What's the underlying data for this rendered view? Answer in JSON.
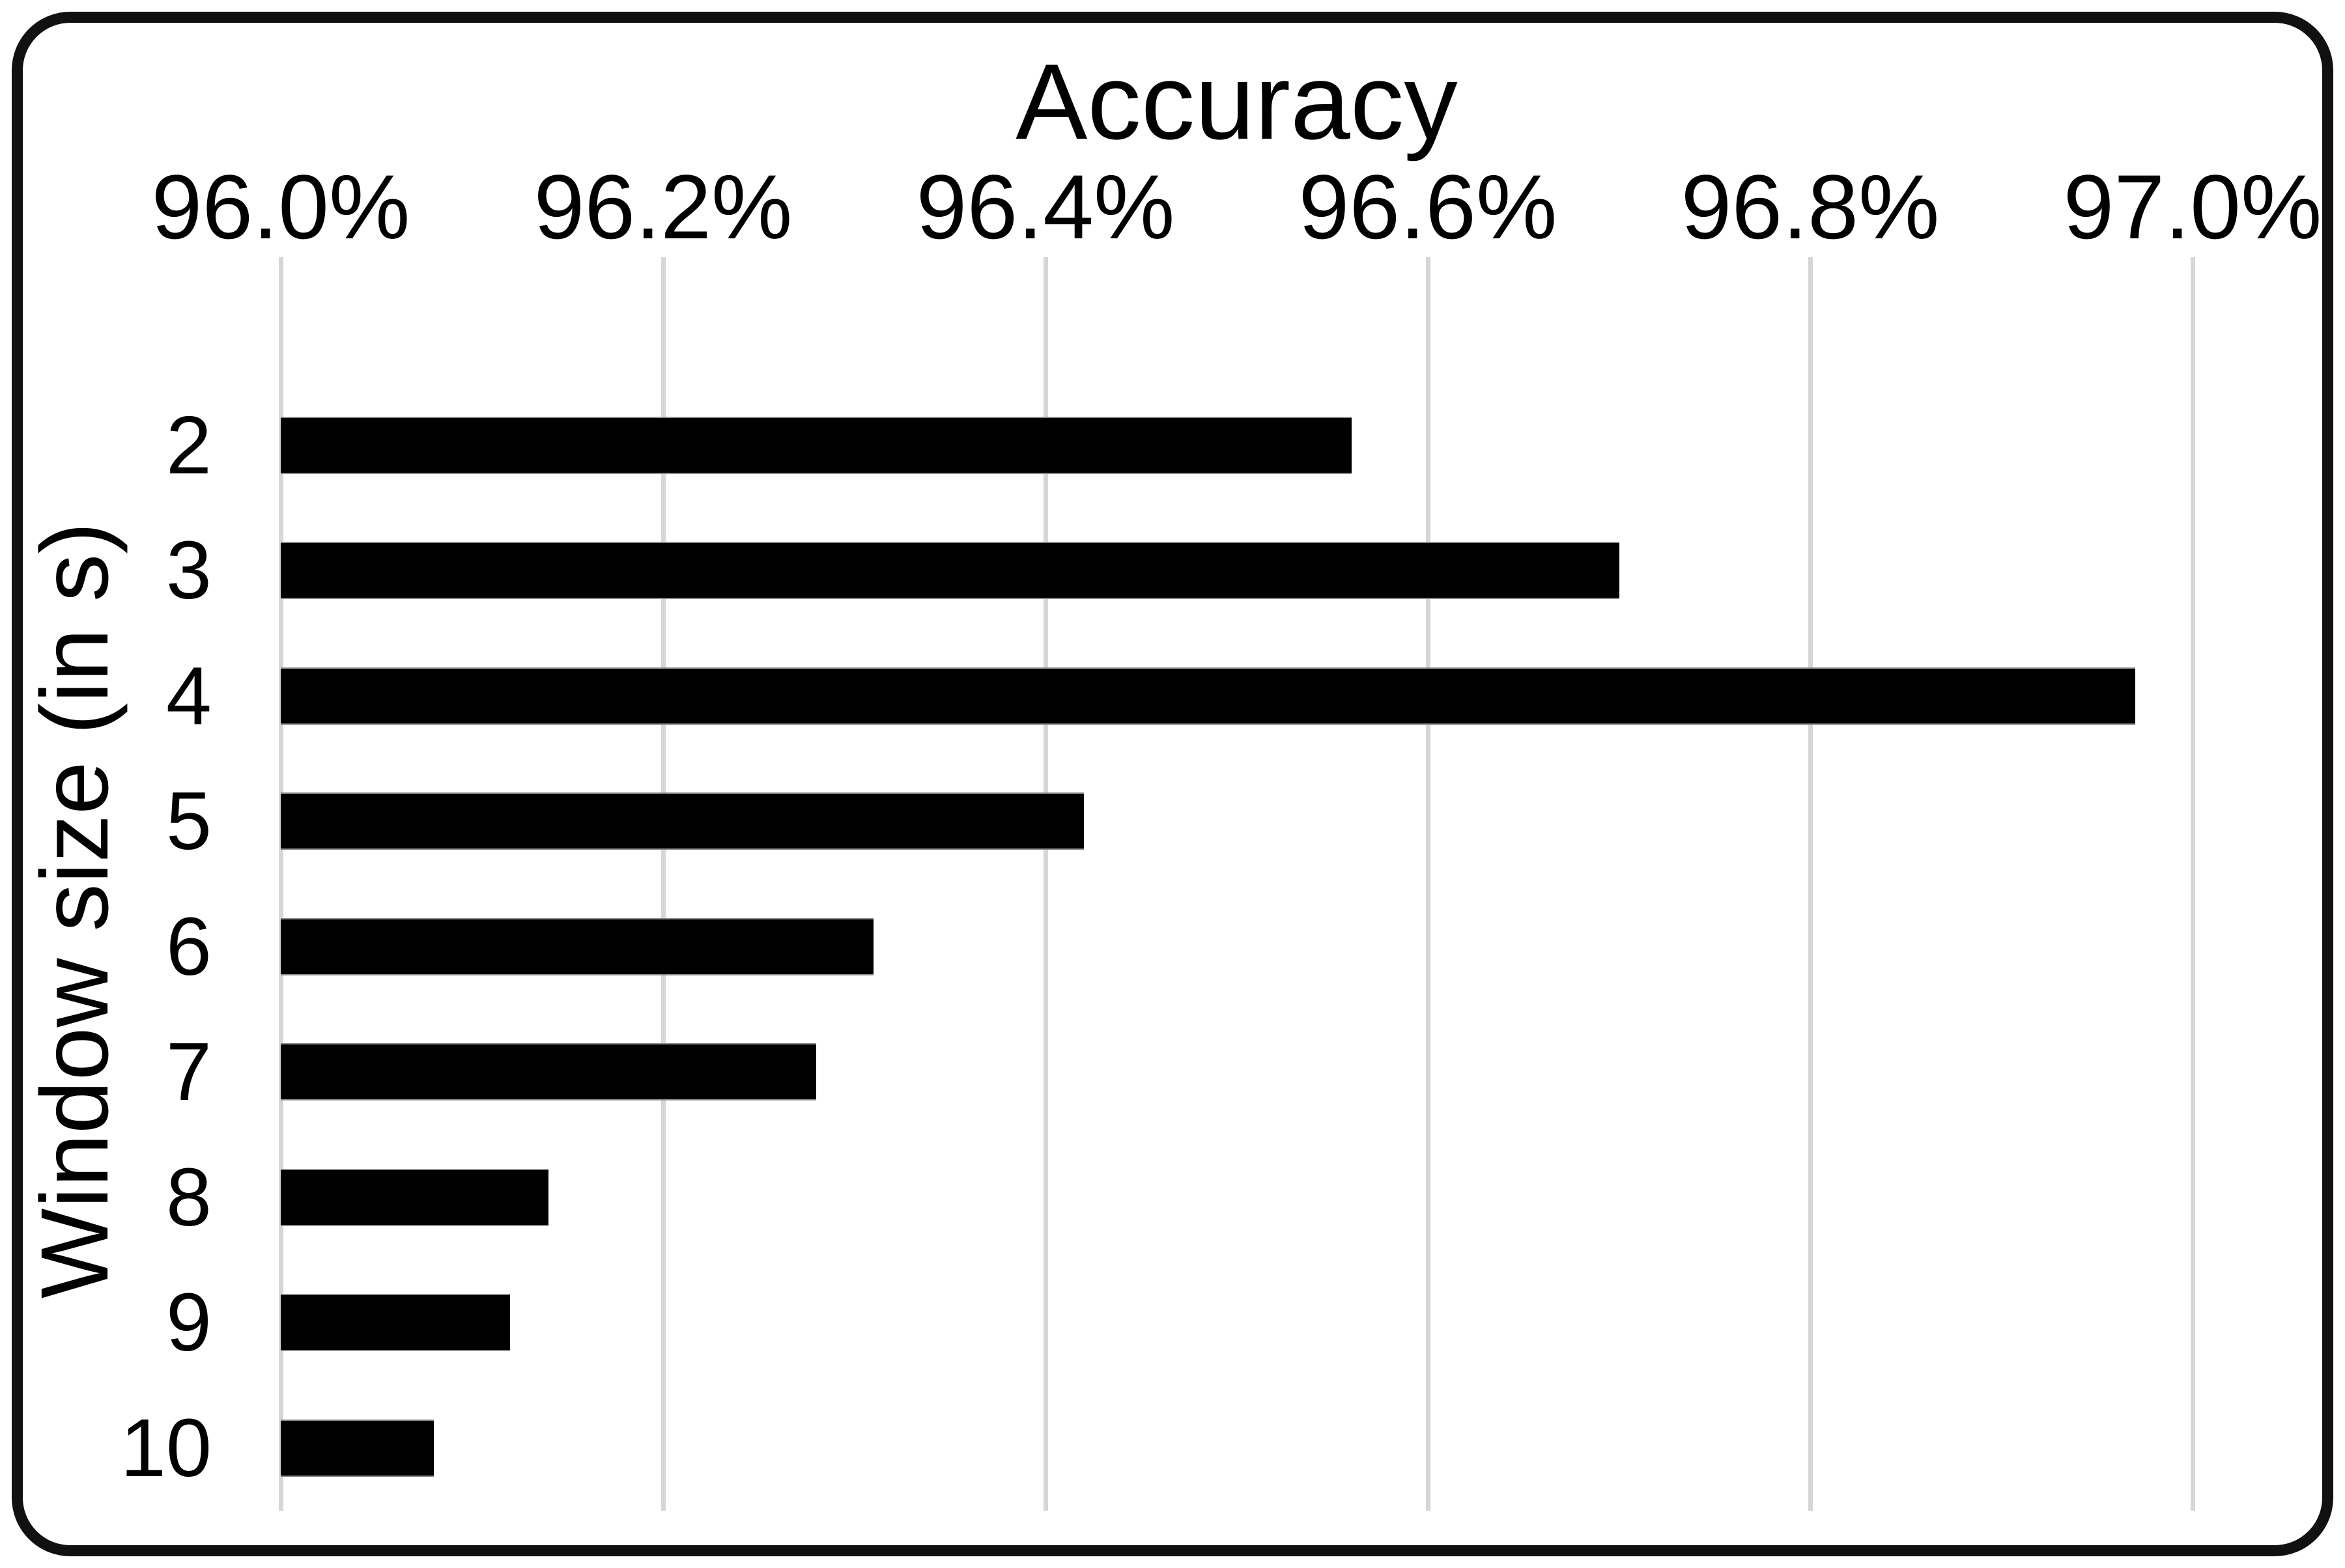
{
  "chart_data": {
    "type": "bar",
    "orientation": "horizontal",
    "title": "Accuracy",
    "axis_title_position": "top",
    "xlabel": "Accuracy",
    "ylabel": "Window size (in s)",
    "categories": [
      "2",
      "3",
      "4",
      "5",
      "6",
      "7",
      "8",
      "9",
      "10"
    ],
    "values": [
      96.56,
      96.7,
      96.97,
      96.42,
      96.31,
      96.28,
      96.14,
      96.12,
      96.08
    ],
    "unit": "%",
    "xlim": [
      96.0,
      97.0
    ],
    "x_tick_labels": [
      "96.0%",
      "96.2%",
      "96.4%",
      "96.6%",
      "96.8%",
      "97.0%"
    ],
    "grid": "vertical",
    "legend": "none",
    "bar_color": "#000000",
    "gridline_color": "#d6d6d6",
    "frame_color": "#111111",
    "background": "#ffffff"
  }
}
